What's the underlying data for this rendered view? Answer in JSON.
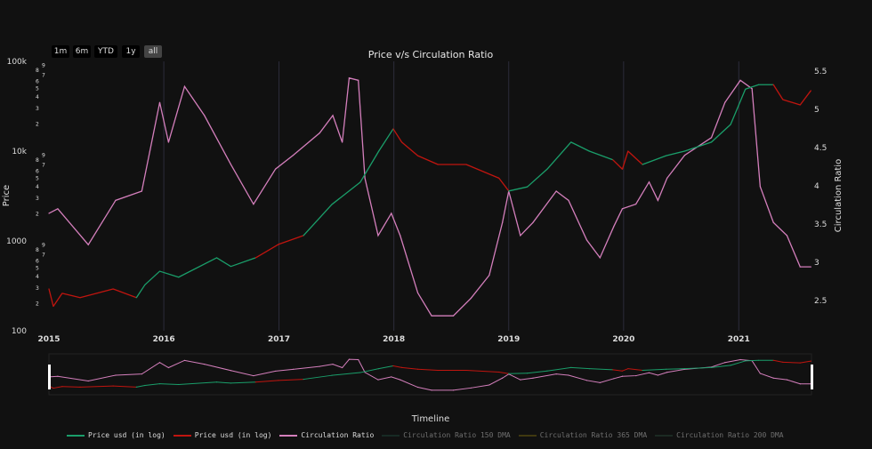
{
  "range_buttons": [
    {
      "label": "1m",
      "active": false
    },
    {
      "label": "6m",
      "active": false
    },
    {
      "label": "YTD",
      "active": false
    },
    {
      "label": "1y",
      "active": false
    },
    {
      "label": "all",
      "active": true
    }
  ],
  "legend": [
    {
      "label": "Price usd (in log)",
      "color": "#1a9e6a",
      "visible": true
    },
    {
      "label": "Price usd (in log)",
      "color": "#c0150f",
      "visible": true
    },
    {
      "label": "Circulation Ratio",
      "color": "#d47fbc",
      "visible": true
    },
    {
      "label": "Circulation Ratio 150 DMA",
      "color": "#1f4a3c",
      "visible": false
    },
    {
      "label": "Circulation Ratio 365 DMA",
      "color": "#7a6a10",
      "visible": false
    },
    {
      "label": "Circulation Ratio 200 DMA",
      "color": "#2a4a3a",
      "visible": false
    }
  ],
  "chart_data": {
    "type": "line",
    "title": "Price v/s Circulation Ratio",
    "xlabel": "Timeline",
    "ylabel": "Price",
    "y2label": "Circulation Ratio",
    "yscale": "log",
    "ylim": [
      100,
      100000
    ],
    "y2lim": [
      2.2,
      5.6
    ],
    "xlim": [
      "2015-01-01",
      "2021-08-20"
    ],
    "grid": "vertical",
    "legend_position": "bottom",
    "x_ticks": [
      "2015",
      "2016",
      "2017",
      "2018",
      "2019",
      "2020",
      "2021"
    ],
    "y_ticks": [
      "100",
      "1000",
      "10k",
      "100k"
    ],
    "y_minor_ticks": [
      "2",
      "3",
      "4",
      "5",
      "6",
      "7",
      "8",
      "9"
    ],
    "y2_ticks": [
      "2.5",
      "3",
      "3.5",
      "4",
      "4.5",
      "5",
      "5.5"
    ],
    "colors": {
      "up": "#1a9e6a",
      "down": "#c0150f",
      "ratio": "#d47fbc"
    },
    "price": [
      [
        "2015-01-01",
        292,
        "down"
      ],
      [
        "2015-01-15",
        187,
        "down"
      ],
      [
        "2015-02-12",
        261,
        "down"
      ],
      [
        "2015-04-10",
        234,
        "down"
      ],
      [
        "2015-07-24",
        292,
        "down"
      ],
      [
        "2015-10-06",
        234,
        "up"
      ],
      [
        "2015-11-02",
        325,
        "up"
      ],
      [
        "2015-12-19",
        460,
        "up"
      ],
      [
        "2016-02-17",
        395,
        "up"
      ],
      [
        "2016-06-17",
        650,
        "up"
      ],
      [
        "2016-08-01",
        520,
        "up"
      ],
      [
        "2016-10-19",
        650,
        "down"
      ],
      [
        "2016-12-30",
        915,
        "down"
      ],
      [
        "2017-03-20",
        1150,
        "up"
      ],
      [
        "2017-06-18",
        2550,
        "up"
      ],
      [
        "2017-09-16",
        4500,
        "up"
      ],
      [
        "2017-11-14",
        10000,
        "up"
      ],
      [
        "2017-12-30",
        17700,
        "down"
      ],
      [
        "2018-01-26",
        12600,
        "down"
      ],
      [
        "2018-03-18",
        8900,
        "down"
      ],
      [
        "2018-05-21",
        7100,
        "down"
      ],
      [
        "2018-08-19",
        7100,
        "down"
      ],
      [
        "2018-12-01",
        5000,
        "down"
      ],
      [
        "2019-01-01",
        3600,
        "up"
      ],
      [
        "2019-03-01",
        4000,
        "up"
      ],
      [
        "2019-05-03",
        6300,
        "up"
      ],
      [
        "2019-07-18",
        12600,
        "up"
      ],
      [
        "2019-09-14",
        10000,
        "up"
      ],
      [
        "2019-11-28",
        8000,
        "down"
      ],
      [
        "2019-12-28",
        6300,
        "down"
      ],
      [
        "2020-01-15",
        10000,
        "down"
      ],
      [
        "2020-03-01",
        7100,
        "up"
      ],
      [
        "2020-05-15",
        8900,
        "up"
      ],
      [
        "2020-07-13",
        10000,
        "up"
      ],
      [
        "2020-10-06",
        12600,
        "up"
      ],
      [
        "2020-12-06",
        19800,
        "up"
      ],
      [
        "2021-01-22",
        49000,
        "up"
      ],
      [
        "2021-03-05",
        55000,
        "up"
      ],
      [
        "2021-04-21",
        55000,
        "down"
      ],
      [
        "2021-05-21",
        37500,
        "down"
      ],
      [
        "2021-07-15",
        32700,
        "down"
      ],
      [
        "2021-08-18",
        47200,
        "down"
      ]
    ],
    "circulation_ratio": [
      [
        "2015-01-01",
        3.64
      ],
      [
        "2015-01-29",
        3.7
      ],
      [
        "2015-05-06",
        3.23
      ],
      [
        "2015-08-01",
        3.81
      ],
      [
        "2015-10-23",
        3.93
      ],
      [
        "2015-12-19",
        5.09
      ],
      [
        "2016-01-16",
        4.57
      ],
      [
        "2016-03-07",
        5.3
      ],
      [
        "2016-05-09",
        4.92
      ],
      [
        "2016-08-01",
        4.28
      ],
      [
        "2016-10-12",
        3.76
      ],
      [
        "2016-12-21",
        4.22
      ],
      [
        "2017-02-15",
        4.4
      ],
      [
        "2017-05-10",
        4.69
      ],
      [
        "2017-06-21",
        4.92
      ],
      [
        "2017-07-21",
        4.57
      ],
      [
        "2017-08-12",
        5.41
      ],
      [
        "2017-09-10",
        5.38
      ],
      [
        "2017-10-01",
        4.1
      ],
      [
        "2017-11-12",
        3.35
      ],
      [
        "2017-12-24",
        3.64
      ],
      [
        "2018-01-21",
        3.35
      ],
      [
        "2018-03-18",
        2.6
      ],
      [
        "2018-05-01",
        2.3
      ],
      [
        "2018-07-09",
        2.3
      ],
      [
        "2018-09-03",
        2.53
      ],
      [
        "2018-10-31",
        2.83
      ],
      [
        "2018-12-12",
        3.52
      ],
      [
        "2019-01-01",
        3.93
      ],
      [
        "2019-02-07",
        3.35
      ],
      [
        "2019-03-19",
        3.52
      ],
      [
        "2019-06-01",
        3.93
      ],
      [
        "2019-07-10",
        3.81
      ],
      [
        "2019-09-06",
        3.29
      ],
      [
        "2019-10-18",
        3.06
      ],
      [
        "2019-12-01",
        3.47
      ],
      [
        "2019-12-28",
        3.7
      ],
      [
        "2020-02-09",
        3.76
      ],
      [
        "2020-03-22",
        4.05
      ],
      [
        "2020-04-19",
        3.81
      ],
      [
        "2020-05-18",
        4.1
      ],
      [
        "2020-07-13",
        4.4
      ],
      [
        "2020-10-06",
        4.63
      ],
      [
        "2020-11-18",
        5.09
      ],
      [
        "2021-01-06",
        5.38
      ],
      [
        "2021-02-12",
        5.27
      ],
      [
        "2021-03-10",
        3.99
      ],
      [
        "2021-04-21",
        3.52
      ],
      [
        "2021-06-03",
        3.35
      ],
      [
        "2021-07-15",
        2.94
      ],
      [
        "2021-08-18",
        2.94
      ]
    ]
  }
}
